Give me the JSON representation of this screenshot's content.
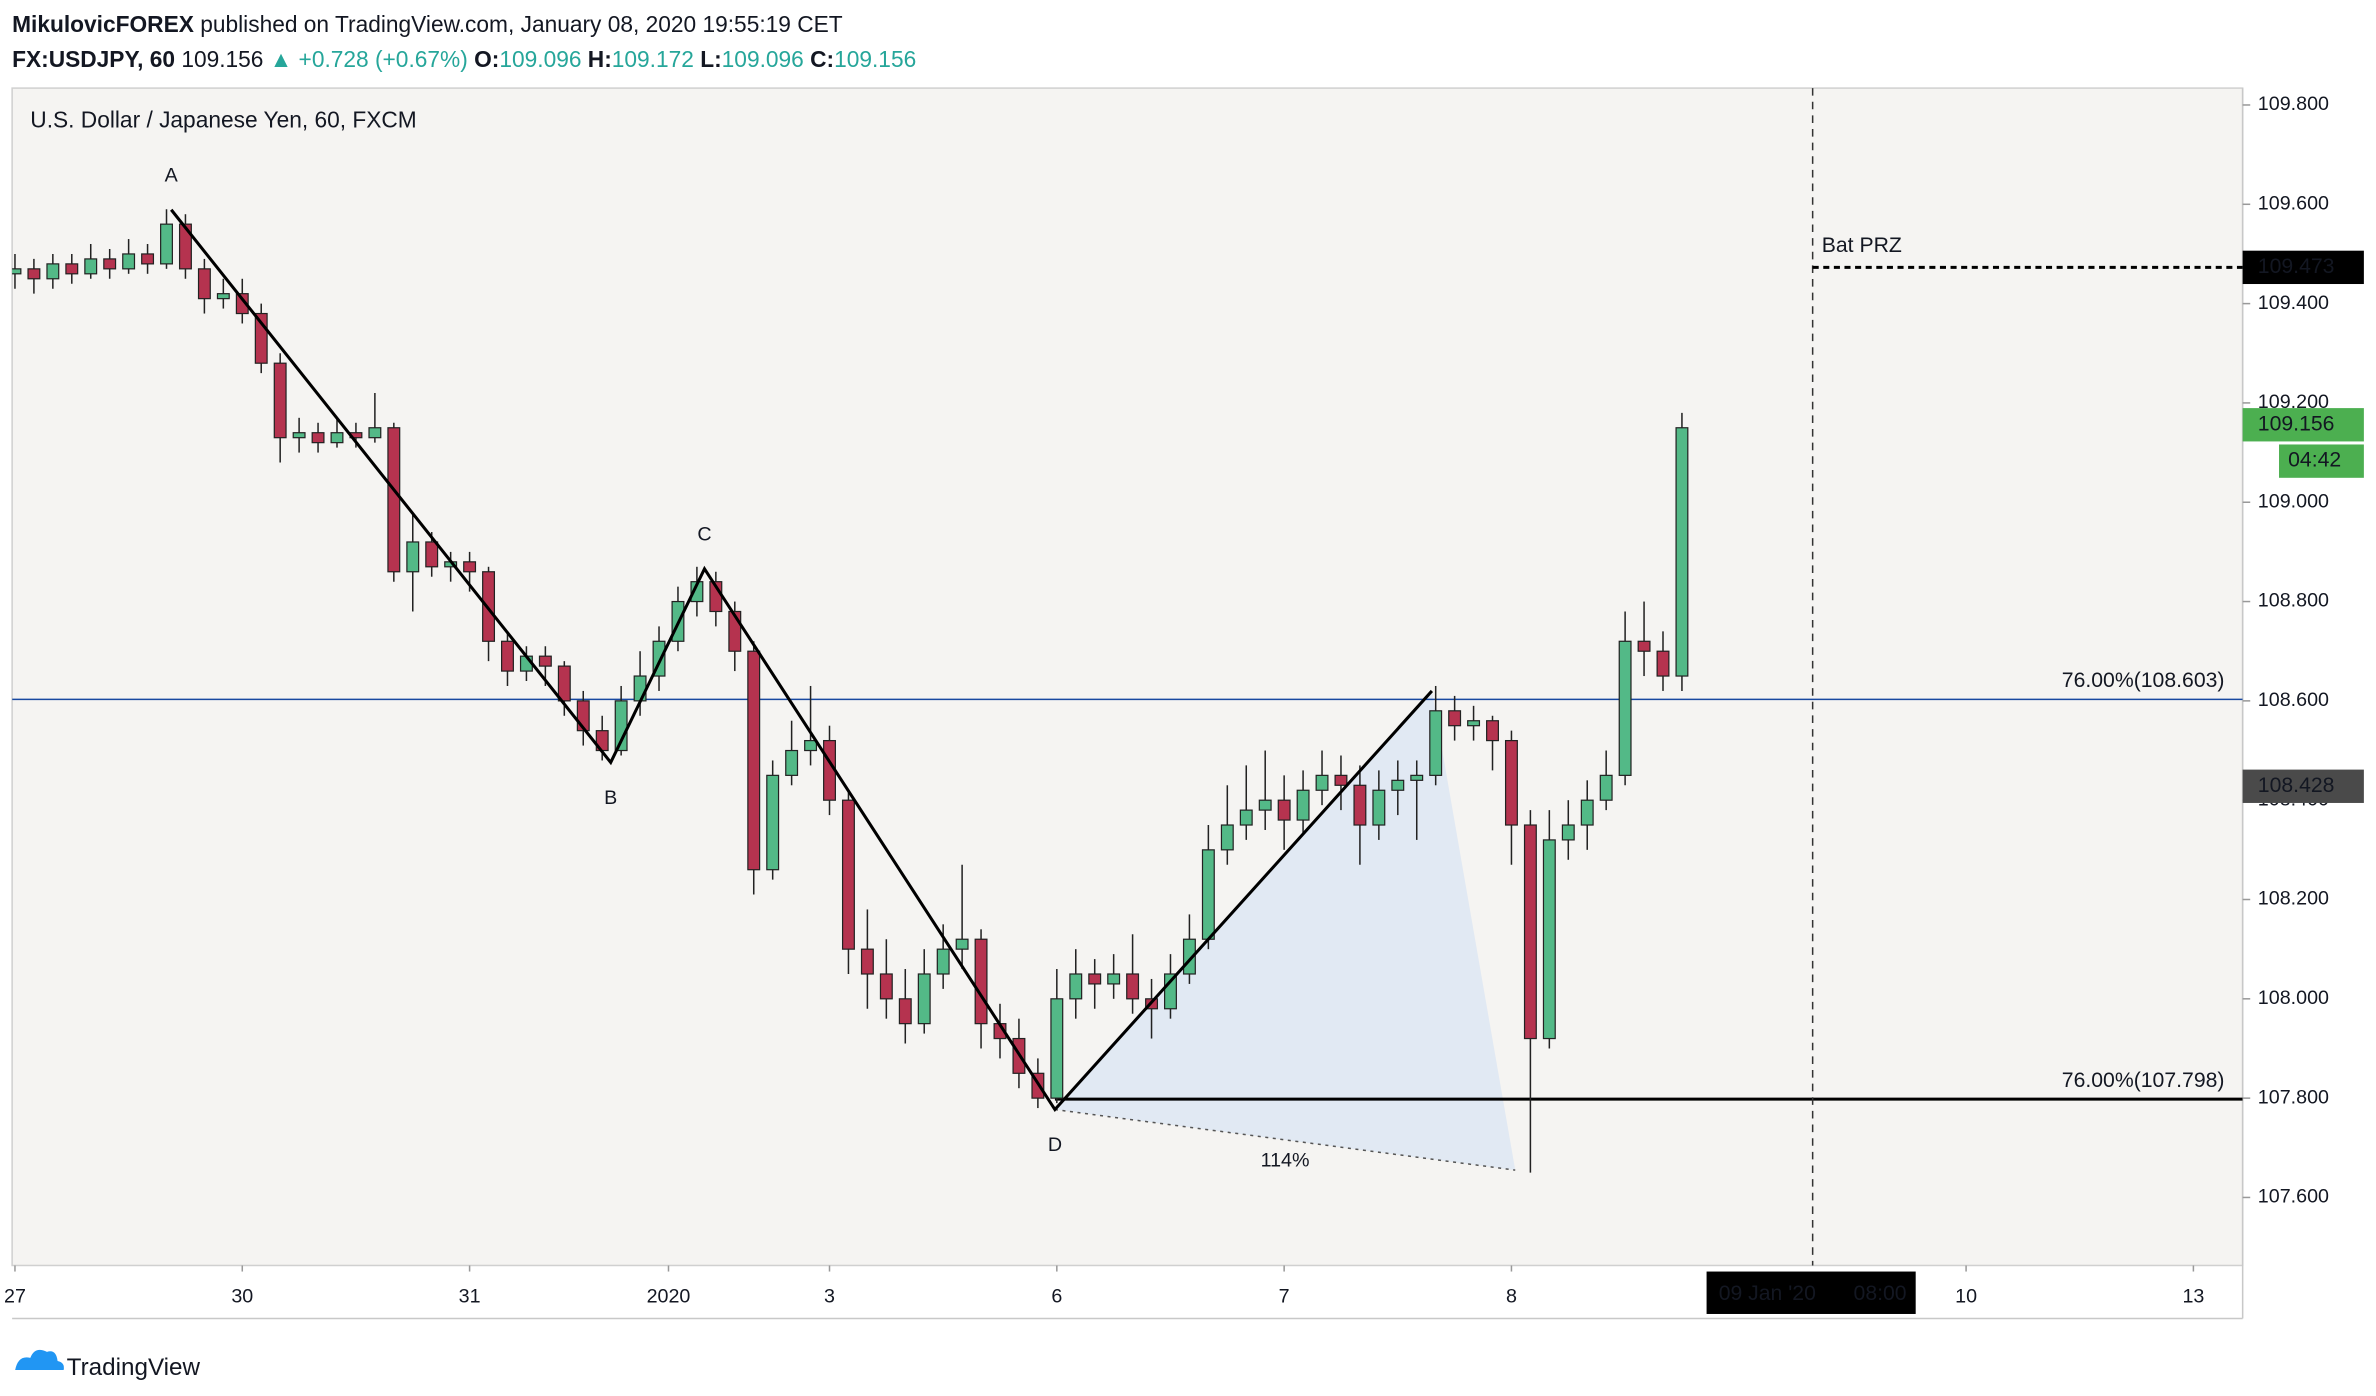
{
  "header": {
    "author": "MikulovicFOREX",
    "published": "published on TradingView.com, January 08, 2020 19:55:19 CET",
    "symbol": "FX:USDJPY, 60",
    "last": 109.156,
    "change": "▲ +0.728 (+0.67%)",
    "ohlc": [
      {
        "key": "O:",
        "value": 109.096
      },
      {
        "key": "H:",
        "value": 109.172
      },
      {
        "key": "L:",
        "value": 109.096
      },
      {
        "key": "C:",
        "value": 109.156
      }
    ]
  },
  "chart_data": {
    "type": "candlestick",
    "title": "U.S. Dollar / Japanese Yen, 60, FXCM",
    "up_color": "#53b987",
    "down_color": "#b5334f",
    "grid": false,
    "x": [
      -24,
      -22,
      -20,
      -18,
      -16,
      -14,
      -12,
      -10,
      -8,
      -6,
      -4,
      -2,
      0,
      2,
      4,
      6,
      8,
      10,
      12,
      14,
      16,
      18,
      20,
      22,
      24,
      26,
      28,
      30,
      32,
      34,
      36,
      38,
      40,
      42,
      44,
      46,
      48,
      50,
      52,
      54,
      56,
      58,
      60,
      62,
      64,
      66,
      68,
      70,
      72,
      74,
      76,
      78,
      80,
      82,
      84,
      86,
      88,
      90,
      92,
      94,
      96,
      98,
      100,
      102,
      104,
      106,
      108,
      110,
      112,
      114,
      116,
      118,
      120,
      122,
      124,
      126,
      128,
      130,
      132,
      134,
      136,
      138,
      140,
      142,
      144,
      146,
      148,
      150,
      152
    ],
    "open": [
      109.46,
      109.47,
      109.45,
      109.48,
      109.46,
      109.49,
      109.47,
      109.5,
      109.48,
      109.56,
      109.47,
      109.41,
      109.42,
      109.38,
      109.28,
      109.13,
      109.14,
      109.12,
      109.14,
      109.13,
      109.15,
      108.86,
      108.92,
      108.87,
      108.88,
      108.86,
      108.72,
      108.66,
      108.69,
      108.67,
      108.6,
      108.54,
      108.5,
      108.6,
      108.65,
      108.72,
      108.8,
      108.84,
      108.78,
      108.7,
      108.26,
      108.45,
      108.5,
      108.52,
      108.4,
      108.1,
      108.05,
      108.0,
      107.95,
      108.05,
      108.1,
      108.12,
      107.95,
      107.92,
      107.85,
      107.8,
      108.0,
      108.05,
      108.03,
      108.05,
      108.0,
      107.98,
      108.05,
      108.12,
      108.3,
      108.35,
      108.38,
      108.4,
      108.36,
      108.42,
      108.45,
      108.43,
      108.35,
      108.42,
      108.44,
      108.45,
      108.58,
      108.55,
      108.56,
      108.52,
      108.35,
      107.92,
      108.32,
      108.35,
      108.4,
      108.45,
      108.72,
      108.7,
      108.65
    ],
    "high": [
      109.5,
      109.49,
      109.5,
      109.5,
      109.52,
      109.51,
      109.53,
      109.52,
      109.59,
      109.58,
      109.49,
      109.45,
      109.45,
      109.4,
      109.3,
      109.17,
      109.16,
      109.17,
      109.16,
      109.22,
      109.16,
      108.98,
      108.94,
      108.9,
      108.9,
      108.87,
      108.74,
      108.71,
      108.71,
      108.68,
      108.62,
      108.57,
      108.63,
      108.7,
      108.75,
      108.83,
      108.87,
      108.86,
      108.8,
      108.72,
      108.48,
      108.56,
      108.63,
      108.55,
      108.42,
      108.18,
      108.12,
      108.06,
      108.1,
      108.15,
      108.27,
      108.14,
      107.99,
      107.96,
      107.88,
      108.06,
      108.1,
      108.08,
      108.09,
      108.13,
      108.04,
      108.09,
      108.17,
      108.35,
      108.43,
      108.47,
      108.5,
      108.45,
      108.46,
      108.5,
      108.49,
      108.47,
      108.46,
      108.48,
      108.48,
      108.63,
      108.61,
      108.59,
      108.57,
      108.54,
      108.38,
      108.38,
      108.4,
      108.44,
      108.5,
      108.78,
      108.8,
      108.74,
      109.18
    ],
    "low": [
      109.43,
      109.42,
      109.43,
      109.44,
      109.45,
      109.45,
      109.46,
      109.46,
      109.47,
      109.45,
      109.38,
      109.39,
      109.36,
      109.26,
      109.08,
      109.1,
      109.1,
      109.11,
      109.11,
      109.12,
      108.84,
      108.78,
      108.85,
      108.84,
      108.82,
      108.68,
      108.63,
      108.64,
      108.63,
      108.57,
      108.51,
      108.48,
      108.49,
      108.57,
      108.62,
      108.7,
      108.77,
      108.75,
      108.66,
      108.21,
      108.24,
      108.43,
      108.47,
      108.37,
      108.05,
      107.98,
      107.96,
      107.91,
      107.93,
      108.02,
      108.06,
      107.9,
      107.88,
      107.82,
      107.78,
      107.79,
      107.96,
      107.98,
      108.0,
      107.97,
      107.92,
      107.96,
      108.03,
      108.1,
      108.27,
      108.32,
      108.34,
      108.3,
      108.33,
      108.39,
      108.38,
      108.27,
      108.32,
      108.37,
      108.32,
      108.43,
      108.52,
      108.52,
      108.46,
      108.27,
      107.65,
      107.9,
      108.28,
      108.3,
      108.38,
      108.43,
      108.65,
      108.62,
      108.62
    ],
    "close": [
      109.47,
      109.45,
      109.48,
      109.46,
      109.49,
      109.47,
      109.5,
      109.48,
      109.56,
      109.47,
      109.41,
      109.42,
      109.38,
      109.28,
      109.13,
      109.14,
      109.12,
      109.14,
      109.13,
      109.15,
      108.86,
      108.92,
      108.87,
      108.88,
      108.86,
      108.72,
      108.66,
      108.69,
      108.67,
      108.6,
      108.54,
      108.5,
      108.6,
      108.65,
      108.72,
      108.8,
      108.84,
      108.78,
      108.7,
      108.26,
      108.45,
      108.5,
      108.52,
      108.4,
      108.1,
      108.05,
      108.0,
      107.95,
      108.05,
      108.1,
      108.12,
      107.95,
      107.92,
      107.85,
      107.8,
      108.0,
      108.05,
      108.03,
      108.05,
      108.0,
      107.98,
      108.05,
      108.12,
      108.3,
      108.35,
      108.38,
      108.4,
      108.36,
      108.42,
      108.45,
      108.43,
      108.35,
      108.42,
      108.44,
      108.45,
      108.58,
      108.55,
      108.56,
      108.52,
      108.35,
      107.92,
      108.32,
      108.35,
      108.4,
      108.45,
      108.72,
      108.7,
      108.65,
      109.15
    ],
    "xlim": [
      -24.3,
      211.2
    ],
    "xticks": [
      {
        "value": -24,
        "label": "27"
      },
      {
        "value": 0,
        "label": "30"
      },
      {
        "value": 24,
        "label": "31"
      },
      {
        "value": 45,
        "label": "2020"
      },
      {
        "value": 62,
        "label": "3"
      },
      {
        "value": 86,
        "label": "6"
      },
      {
        "value": 110,
        "label": "7"
      },
      {
        "value": 134,
        "label": "8"
      },
      {
        "value": 182,
        "label": "10"
      },
      {
        "value": 206,
        "label": "13"
      }
    ],
    "ylim": [
      107.463,
      109.834
    ],
    "yticks": [
      {
        "value": 107.6,
        "label": "107.600"
      },
      {
        "value": 107.8,
        "label": "107.800"
      },
      {
        "value": 108,
        "label": "108.000"
      },
      {
        "value": 108.2,
        "label": "108.200"
      },
      {
        "value": 108.4,
        "label": "108.400"
      },
      {
        "value": 108.6,
        "label": "108.600"
      },
      {
        "value": 108.8,
        "label": "108.800"
      },
      {
        "value": 109,
        "label": "109.000"
      },
      {
        "value": 109.2,
        "label": "109.200"
      },
      {
        "value": 109.4,
        "label": "109.400"
      },
      {
        "value": 109.6,
        "label": "109.600"
      },
      {
        "value": 109.8,
        "label": "109.800"
      }
    ],
    "pattern": {
      "color": "#000000",
      "fill": "#dce6f2",
      "points": [
        {
          "label": "A",
          "x": -7.5,
          "price": 109.589
        },
        {
          "label": "B",
          "x": 38.9,
          "price": 108.476
        },
        {
          "label": "C",
          "x": 48.8,
          "price": 108.866
        },
        {
          "label": "D",
          "x": 85.8,
          "price": 107.777
        },
        {
          "x": 125.6,
          "price": 108.62
        }
      ],
      "extension": {
        "x": 134.4,
        "price": 107.655,
        "label": "114%"
      }
    },
    "levels": [
      {
        "label": "76.00%(108.603)",
        "value": 108.603,
        "color": "#1848a0",
        "line_width": 1
      },
      {
        "label": "76.00%(107.798)",
        "value": 107.798,
        "color": "#000000",
        "line_width": 2,
        "x": 85.8
      }
    ],
    "prz": {
      "label": "Bat PRZ",
      "value": 109.473,
      "x": 165.8
    },
    "crosshair": {
      "x": 165.8,
      "date_label": "09 Jan '20",
      "time_label": "08:00",
      "price": 108.428
    },
    "last_price": {
      "value": 109.156,
      "countdown": "04:42",
      "color": "#4caf50"
    }
  },
  "footer": {
    "brand": "TradingView"
  }
}
